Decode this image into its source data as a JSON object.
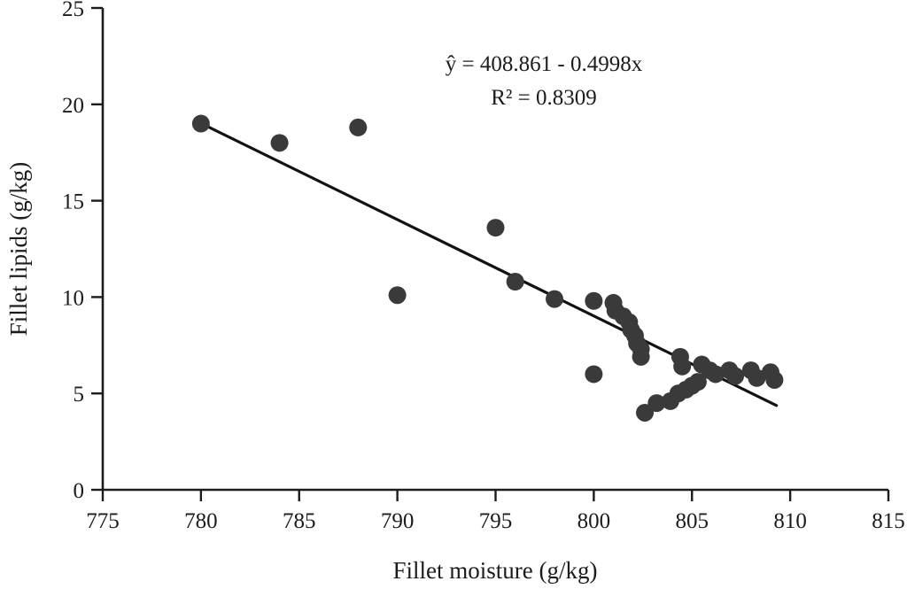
{
  "figure": {
    "background_color": "#ffffff",
    "text_color": "#1c1c1c"
  },
  "chart_data": {
    "type": "scatter",
    "title": "",
    "xlabel": "Fillet moisture (g/kg)",
    "ylabel": "Fillet lipids (g/kg)",
    "xlim": [
      775,
      815
    ],
    "ylim": [
      0,
      25
    ],
    "xticks": [
      775,
      780,
      785,
      790,
      795,
      800,
      805,
      810,
      815
    ],
    "yticks": [
      0,
      5,
      10,
      15,
      20,
      25
    ],
    "grid": false,
    "legend": "none",
    "marker_color": "#3a3a3a",
    "marker_radius_px": 10,
    "line_color": "#121212",
    "axis_color": "#1c1c1c",
    "points": [
      [
        780.0,
        19.0
      ],
      [
        784.0,
        18.0
      ],
      [
        788.0,
        18.8
      ],
      [
        790.0,
        10.1
      ],
      [
        795.0,
        13.6
      ],
      [
        796.0,
        10.8
      ],
      [
        798.0,
        9.9
      ],
      [
        800.0,
        9.8
      ],
      [
        801.0,
        9.7
      ],
      [
        801.1,
        9.3
      ],
      [
        801.5,
        9.0
      ],
      [
        801.8,
        8.7
      ],
      [
        801.9,
        8.3
      ],
      [
        802.1,
        8.0
      ],
      [
        802.2,
        7.6
      ],
      [
        802.4,
        7.3
      ],
      [
        802.4,
        6.9
      ],
      [
        800.0,
        6.0
      ],
      [
        802.6,
        4.0
      ],
      [
        803.2,
        4.5
      ],
      [
        803.9,
        4.6
      ],
      [
        804.3,
        5.0
      ],
      [
        804.7,
        5.2
      ],
      [
        805.0,
        5.4
      ],
      [
        805.3,
        5.6
      ],
      [
        804.4,
        6.9
      ],
      [
        804.5,
        6.4
      ],
      [
        805.5,
        6.5
      ],
      [
        805.9,
        6.2
      ],
      [
        806.2,
        6.0
      ],
      [
        806.9,
        6.2
      ],
      [
        807.2,
        5.9
      ],
      [
        808.0,
        6.2
      ],
      [
        808.3,
        5.8
      ],
      [
        809.0,
        6.1
      ],
      [
        809.2,
        5.7
      ]
    ],
    "regression_line": {
      "intercept": 408.861,
      "slope": -0.4998,
      "x_start": 780.0,
      "x_end": 809.3
    },
    "equation_label": "ŷ =  408.861 - 0.4998x",
    "r_squared_label": "R² = 0.8309"
  }
}
